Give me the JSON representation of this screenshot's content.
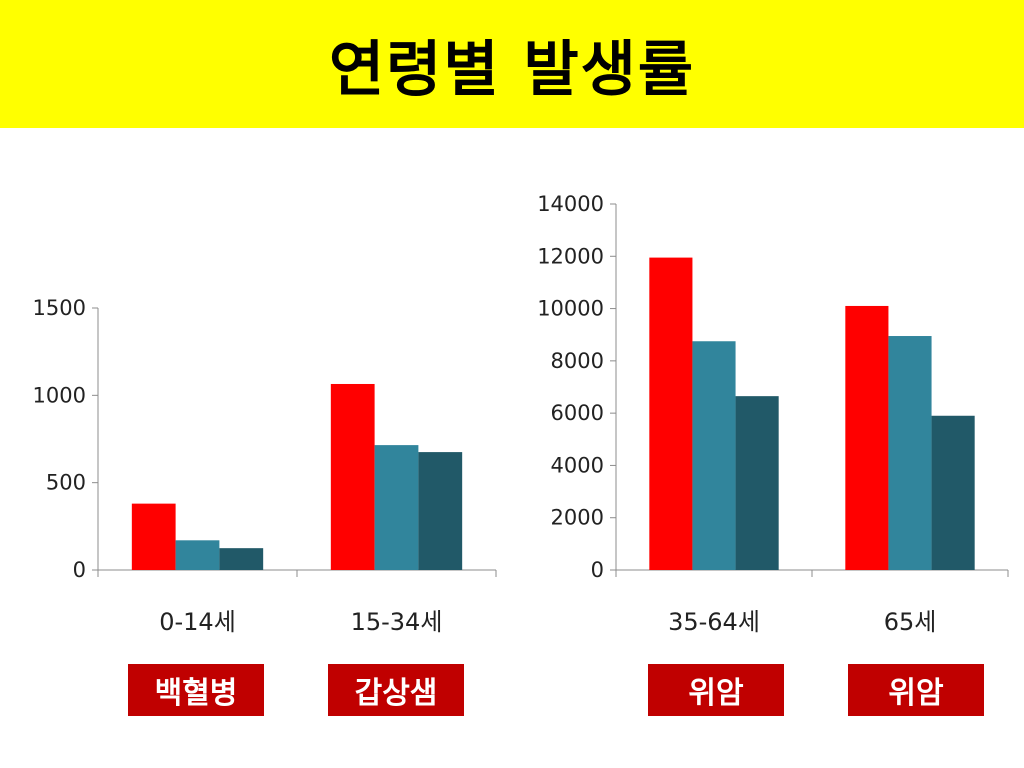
{
  "slide": {
    "title": "연령별 발생률"
  },
  "colors": {
    "series1": "#ff0000",
    "series2": "#31859c",
    "series3": "#215968",
    "tag_bg": "#c00000",
    "title_bg": "#ffff00"
  },
  "chart_data": [
    {
      "type": "bar",
      "title": "",
      "xlabel": "",
      "ylabel": "",
      "categories": [
        "0-14세",
        "15-34세"
      ],
      "series": [
        {
          "values": [
            380,
            1065
          ]
        },
        {
          "values": [
            170,
            715
          ]
        },
        {
          "values": [
            125,
            675
          ]
        }
      ],
      "ylim": [
        0,
        1500
      ],
      "yticks": [
        0,
        500,
        1000,
        1500
      ],
      "grid": false,
      "legend": "none",
      "category_tags": [
        "백혈병",
        "갑상샘"
      ]
    },
    {
      "type": "bar",
      "title": "",
      "xlabel": "",
      "ylabel": "",
      "categories": [
        "35-64세",
        "65세"
      ],
      "series": [
        {
          "values": [
            11950,
            10100
          ]
        },
        {
          "values": [
            8750,
            8950
          ]
        },
        {
          "values": [
            6650,
            5900
          ]
        }
      ],
      "ylim": [
        0,
        14000
      ],
      "yticks": [
        0,
        2000,
        4000,
        6000,
        8000,
        10000,
        12000,
        14000
      ],
      "grid": false,
      "legend": "none",
      "category_tags": [
        "위암",
        "위암"
      ]
    }
  ]
}
